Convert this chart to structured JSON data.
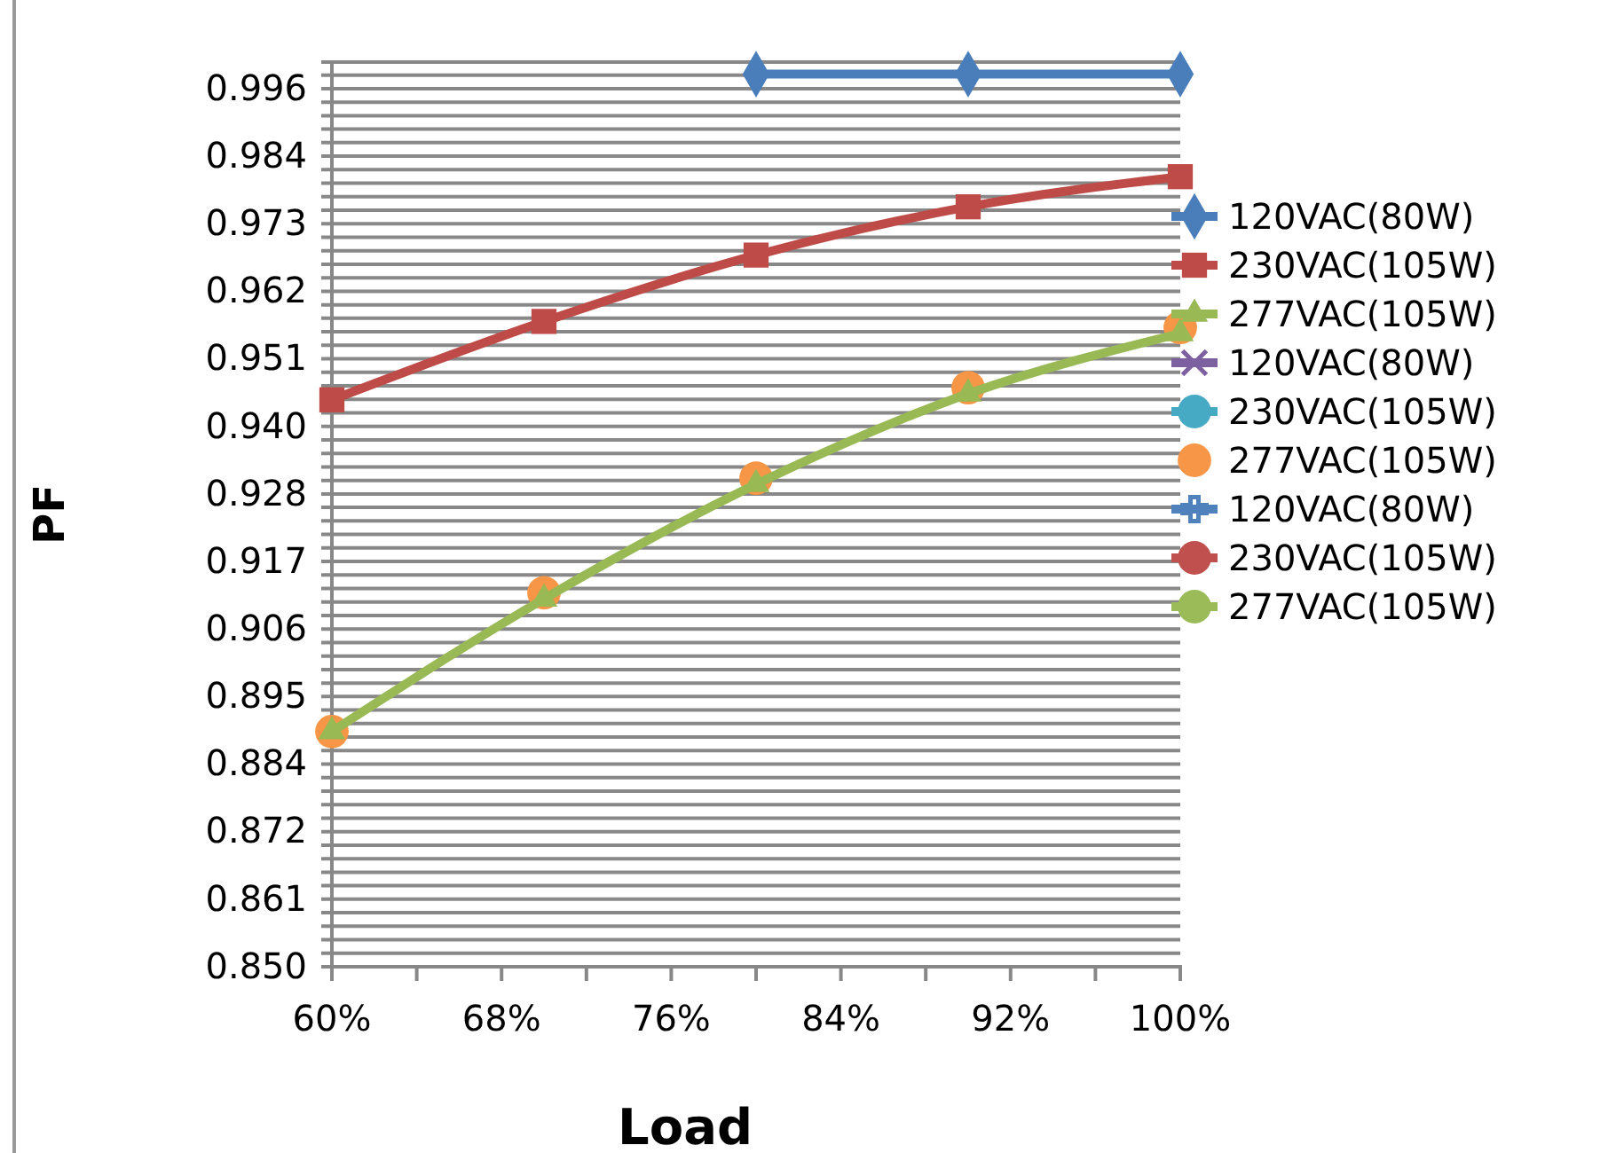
{
  "chart_data": {
    "type": "line",
    "xlabel": "Load",
    "ylabel": "PF",
    "x": [
      60,
      70,
      80,
      90,
      100
    ],
    "xlim": [
      60,
      100
    ],
    "xticks": [
      {
        "value": 60,
        "label": "60%"
      },
      {
        "value": 64,
        "label": null
      },
      {
        "value": 68,
        "label": "68%"
      },
      {
        "value": 72,
        "label": null
      },
      {
        "value": 76,
        "label": "76%"
      },
      {
        "value": 80,
        "label": null
      },
      {
        "value": 84,
        "label": "84%"
      },
      {
        "value": 88,
        "label": null
      },
      {
        "value": 92,
        "label": "92%"
      },
      {
        "value": 96,
        "label": null
      },
      {
        "value": 100,
        "label": "100%"
      }
    ],
    "ylim": [
      0.85,
      1.0
    ],
    "yticks": [
      {
        "value": 0.85,
        "label": "0.850"
      },
      {
        "value": 0.8612,
        "label": "0.861"
      },
      {
        "value": 0.8724,
        "label": "0.872"
      },
      {
        "value": 0.8836,
        "label": "0.884"
      },
      {
        "value": 0.8948,
        "label": "0.895"
      },
      {
        "value": 0.906,
        "label": "0.906"
      },
      {
        "value": 0.9172,
        "label": "0.917"
      },
      {
        "value": 0.9284,
        "label": "0.928"
      },
      {
        "value": 0.9396,
        "label": "0.940"
      },
      {
        "value": 0.9508,
        "label": "0.951"
      },
      {
        "value": 0.962,
        "label": "0.962"
      },
      {
        "value": 0.9732,
        "label": "0.973"
      },
      {
        "value": 0.9844,
        "label": "0.984"
      },
      {
        "value": 0.9956,
        "label": "0.996"
      }
    ],
    "grid": "y",
    "legend": "right",
    "series": [
      {
        "name": "120VAC(80W)",
        "color": "#4a7ebb",
        "marker": "diamond",
        "values": [
          null,
          null,
          0.998,
          0.998,
          0.998
        ]
      },
      {
        "name": "230VAC(105W)",
        "color": "#be4b48",
        "marker": "square",
        "values": [
          0.944,
          0.957,
          0.968,
          0.976,
          0.981
        ]
      },
      {
        "name": "277VAC(105W)",
        "color": "#98b954",
        "marker": "triangle",
        "values": [
          0.889,
          0.911,
          0.93,
          0.945,
          0.955
        ]
      },
      {
        "name": "120VAC(80W)",
        "color": "#7d60a0",
        "marker": "cross",
        "values": [
          null,
          null,
          null,
          null,
          null
        ]
      },
      {
        "name": "230VAC(105W)",
        "color": "#46aac5",
        "marker": "circle",
        "values": [
          null,
          null,
          null,
          null,
          null
        ]
      },
      {
        "name": "277VAC(105W)",
        "color": "#f79646",
        "marker": "circle",
        "type": "scatter",
        "values": [
          0.889,
          0.912,
          0.931,
          0.946,
          0.956
        ]
      },
      {
        "name": "120VAC(80W)",
        "color": "#4f81bd",
        "marker": "plus",
        "values": [
          null,
          null,
          null,
          null,
          null
        ]
      },
      {
        "name": "230VAC(105W)",
        "color": "#c0504d",
        "marker": "circle",
        "values": [
          null,
          null,
          null,
          null,
          null
        ]
      },
      {
        "name": "277VAC(105W)",
        "color": "#9bbb59",
        "marker": "circle",
        "values": [
          null,
          null,
          null,
          null,
          null
        ]
      }
    ]
  }
}
